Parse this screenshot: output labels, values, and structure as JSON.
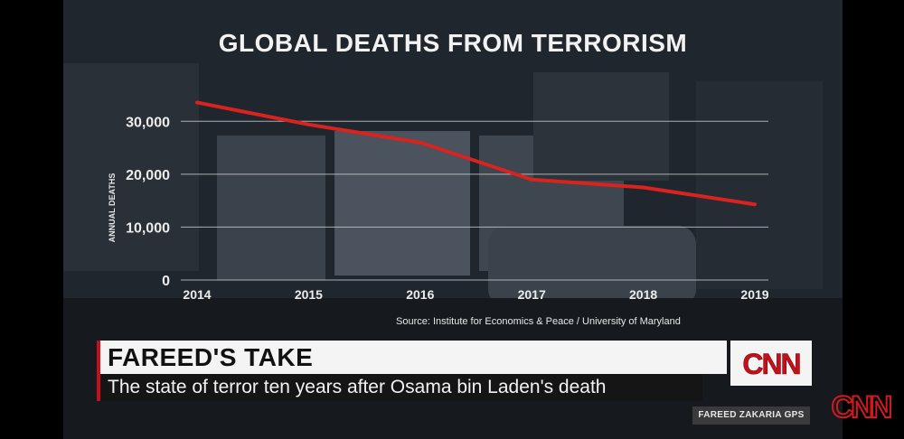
{
  "chart_data": {
    "type": "line",
    "title": "GLOBAL DEATHS FROM TERRORISM",
    "ylabel": "ANNUAL DEATHS",
    "xlabel": "",
    "x": [
      "2014",
      "2015",
      "2016",
      "2017",
      "2018",
      "2019"
    ],
    "values": [
      33555,
      29400,
      26000,
      19000,
      17500,
      14300
    ],
    "ylim": [
      0,
      35000
    ],
    "yticks": [
      0,
      10000,
      20000,
      30000
    ],
    "ytick_labels": [
      "0",
      "10,000",
      "20,000",
      "30,000"
    ],
    "grid": true,
    "line_color": "#d8231f"
  },
  "source_text": "Source: Institute for Economics & Peace / University of Maryland",
  "lower_third": {
    "headline": "FAREED'S TAKE",
    "subhead": "The state of terror ten years after Osama bin Laden's death"
  },
  "logo_text": "CNN",
  "show_tag": "FAREED ZAKARIA GPS",
  "colors": {
    "accent": "#c4101a",
    "line": "#d8231f",
    "grid": "#d0d0d0"
  }
}
